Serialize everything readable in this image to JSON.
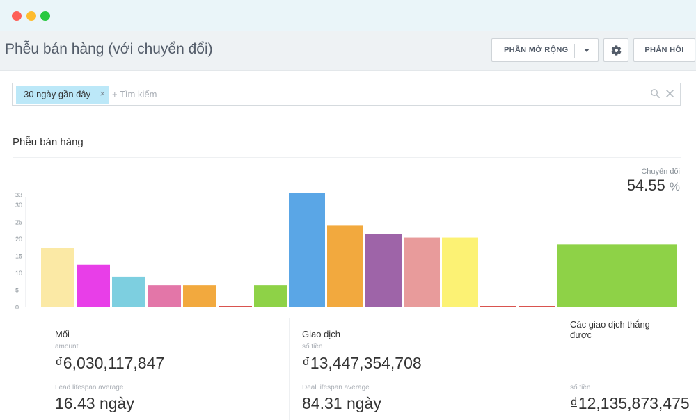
{
  "window": {
    "title": "Phễu bán hàng (với chuyển đổi)"
  },
  "toolbar": {
    "extensions_label": "PHẦN MỞ RỘNG",
    "feedback_label": "PHẢN HỒI"
  },
  "filter": {
    "chip_label": "30 ngày gần đây",
    "chip_remove": "×",
    "search_placeholder": "+ Tìm kiếm"
  },
  "section": {
    "title": "Phễu bán hàng"
  },
  "conversion": {
    "label": "Chuyển đổi",
    "value": "54.55",
    "unit": "%"
  },
  "chart_data": {
    "type": "bar",
    "ylim": [
      0,
      35
    ],
    "yticks": [
      "0",
      "5",
      "10",
      "15",
      "20",
      "25",
      "30",
      "33"
    ],
    "tick_values": [
      0,
      5,
      10,
      15,
      20,
      25,
      30,
      33
    ],
    "groups": [
      {
        "bars": [
          {
            "value": 17.5,
            "color": "#fbe9a5"
          },
          {
            "value": 12.5,
            "color": "#e83ee8"
          },
          {
            "value": 9,
            "color": "#7dcfe0"
          },
          {
            "value": 6.5,
            "color": "#e376a8"
          },
          {
            "value": 6.5,
            "color": "#f2a93e"
          },
          {
            "value": 0,
            "color": "#d9534f"
          },
          {
            "value": 6.5,
            "color": "#8ed247"
          }
        ]
      },
      {
        "bars": [
          {
            "value": 33.5,
            "color": "#5aa6e6"
          },
          {
            "value": 24,
            "color": "#f2a93e"
          },
          {
            "value": 21.5,
            "color": "#9e64a8"
          },
          {
            "value": 20.5,
            "color": "#e89b9b"
          },
          {
            "value": 20.5,
            "color": "#fcf274"
          },
          {
            "value": 0,
            "color": "#d9534f"
          },
          {
            "value": 0,
            "color": "#d9534f"
          }
        ]
      },
      {
        "bars": [
          {
            "value": 18.5,
            "color": "#8ed247"
          }
        ]
      }
    ]
  },
  "stats": {
    "leads": {
      "title": "Mối",
      "amount_label": "amount",
      "amount_value": "₫6,030,117,847",
      "lifespan_label": "Lead lifespan average",
      "lifespan_value": "16.43 ngày"
    },
    "deals": {
      "title": "Giao dịch",
      "amount_label": "số tiền",
      "amount_value": "₫13,447,354,708",
      "lifespan_label": "Deal lifespan average",
      "lifespan_value": "84.31 ngày"
    },
    "won": {
      "title": "Các giao dịch thắng được",
      "amount_label": "số tiền",
      "amount_value": "₫12,135,873,475"
    }
  }
}
